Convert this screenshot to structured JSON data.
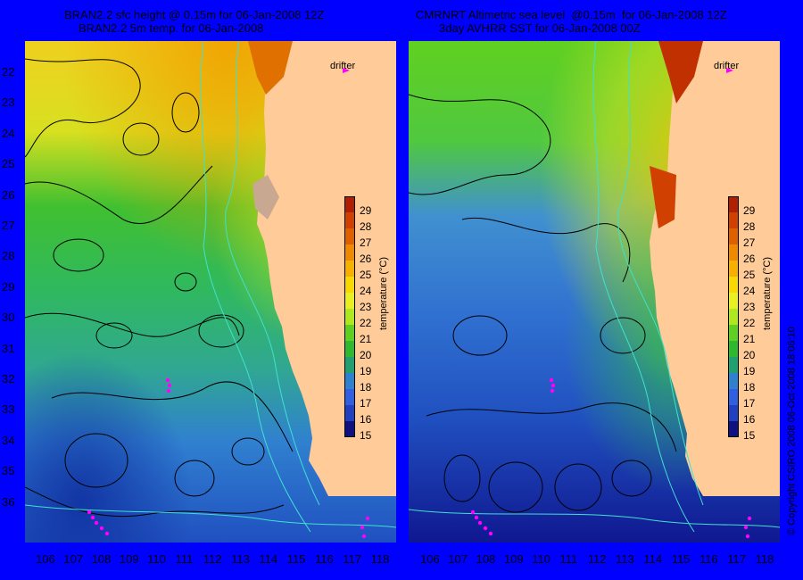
{
  "left_panel": {
    "title_line1": "BRAN2.2 sfc height @ 0.15m for 06-Jan-2008 12Z",
    "title_line2": "BRAN2.2 5m temp. for 06-Jan-2008",
    "drifter_label": "drifter"
  },
  "right_panel": {
    "title_line1": "CMRNRT Altimetric sea level  @0.15m  for 06-Jan-2008 12Z",
    "title_line2": "3day AVHRR SST for 06-Jan-2008 00Z",
    "drifter_label": "drifter"
  },
  "colorbar": {
    "label": "temperature (°C)",
    "ticks": [
      "29",
      "28",
      "27",
      "26",
      "25",
      "24",
      "23",
      "22",
      "21",
      "20",
      "19",
      "18",
      "17",
      "16",
      "15"
    ],
    "colors": [
      "#b02000",
      "#d04000",
      "#e06000",
      "#f08800",
      "#f8b000",
      "#f8d800",
      "#e8f020",
      "#b0e820",
      "#60d020",
      "#30b830",
      "#20a070",
      "#3080d0",
      "#3060e0",
      "#2040c0",
      "#101080"
    ]
  },
  "latitude_ticks": [
    "22",
    "23",
    "24",
    "25",
    "26",
    "27",
    "28",
    "29",
    "30",
    "31",
    "32",
    "33",
    "34",
    "35",
    "36"
  ],
  "longitude_ticks": [
    "106",
    "107",
    "108",
    "109",
    "110",
    "111",
    "112",
    "113",
    "114",
    "115",
    "116",
    "117",
    "118"
  ],
  "copyright": "© Copyright CSIRO 2008   06-Oct-2008 18:06:10",
  "colors": {
    "background": "#0000ff",
    "land": "#ffcc99",
    "drifter": "#ff00ff",
    "bathymetry": "#40e0d0"
  }
}
